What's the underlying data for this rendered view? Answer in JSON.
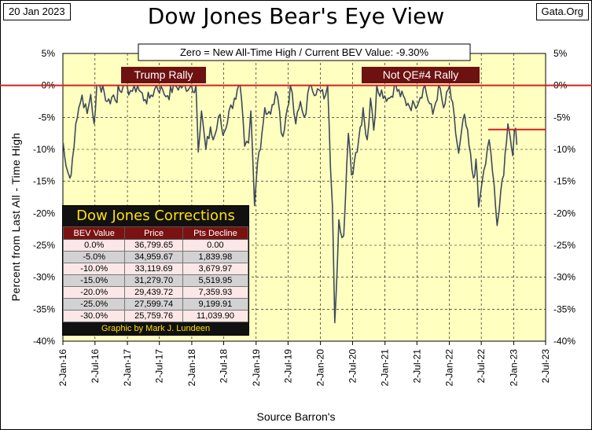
{
  "header": {
    "date": "20 Jan 2023",
    "title": "Dow Jones Bear's Eye View",
    "site": "Gata.Org"
  },
  "chart_data": {
    "type": "line",
    "title": "Dow Jones Bear's Eye View",
    "subtitle": "Zero = New All-Time High / Current BEV Value:  -9.30%",
    "ylabel": "Percent from Last All - Time High",
    "xlabel": "Source Barron's",
    "ylim": [
      -40,
      5
    ],
    "yticks": [
      "5%",
      "0%",
      "-5%",
      "-10%",
      "-15%",
      "-20%",
      "-25%",
      "-30%",
      "-35%",
      "-40%"
    ],
    "xticks": [
      "2-Jan-16",
      "2-Jul-16",
      "2-Jan-17",
      "2-Jul-17",
      "2-Jan-18",
      "2-Jul-18",
      "2-Jan-19",
      "2-Jul-19",
      "2-Jan-20",
      "2-Jul-20",
      "2-Jan-21",
      "2-Jul-21",
      "2-Jan-22",
      "2-Jul-22",
      "2-Jan-23",
      "2-Jul-23"
    ],
    "grid": true,
    "annotations": [
      "Trump Rally",
      "Not QE#4 Rally"
    ],
    "reference_lines": [
      {
        "y": 0,
        "color": "#d42020"
      },
      {
        "y": -6.9,
        "from": "2022-08-10",
        "to": "2023-07-02",
        "color": "#d42020"
      }
    ],
    "series": [
      {
        "name": "BEV",
        "color": "#3d4a5c",
        "points": [
          [
            "2016-01-04",
            -9.0
          ],
          [
            "2016-01-20",
            -12.6
          ],
          [
            "2016-02-11",
            -14.5
          ],
          [
            "2016-02-25",
            -11.5
          ],
          [
            "2016-03-15",
            -6.0
          ],
          [
            "2016-04-01",
            -3.5
          ],
          [
            "2016-04-20",
            -1.5
          ],
          [
            "2016-05-19",
            -4.4
          ],
          [
            "2016-06-08",
            -1.4
          ],
          [
            "2016-06-27",
            -6.0
          ],
          [
            "2016-07-12",
            0.0
          ],
          [
            "2016-08-15",
            0.0
          ],
          [
            "2016-09-09",
            -2.5
          ],
          [
            "2016-10-15",
            -1.5
          ],
          [
            "2016-11-04",
            -2.7
          ],
          [
            "2016-11-10",
            0.0
          ],
          [
            "2016-12-20",
            0.0
          ],
          [
            "2017-01-20",
            -0.8
          ],
          [
            "2017-03-01",
            0.0
          ],
          [
            "2017-04-13",
            -2.2
          ],
          [
            "2017-05-17",
            -1.5
          ],
          [
            "2017-06-15",
            0.0
          ],
          [
            "2017-07-20",
            -0.6
          ],
          [
            "2017-08-18",
            -1.6
          ],
          [
            "2017-09-20",
            0.0
          ],
          [
            "2017-12-31",
            0.0
          ],
          [
            "2018-01-26",
            0.0
          ],
          [
            "2018-02-08",
            -10.4
          ],
          [
            "2018-02-26",
            -4.0
          ],
          [
            "2018-03-23",
            -10.0
          ],
          [
            "2018-04-18",
            -6.5
          ],
          [
            "2018-05-03",
            -8.5
          ],
          [
            "2018-06-12",
            -4.5
          ],
          [
            "2018-06-28",
            -7.8
          ],
          [
            "2018-08-01",
            -4.0
          ],
          [
            "2018-09-01",
            -2.0
          ],
          [
            "2018-10-03",
            0.0
          ],
          [
            "2018-10-29",
            -9.5
          ],
          [
            "2018-11-20",
            -9.0
          ],
          [
            "2018-12-03",
            -4.0
          ],
          [
            "2018-12-24",
            -18.8
          ],
          [
            "2019-01-10",
            -12.0
          ],
          [
            "2019-02-20",
            -3.5
          ],
          [
            "2019-03-25",
            -4.5
          ],
          [
            "2019-04-23",
            -1.0
          ],
          [
            "2019-05-15",
            -4.0
          ],
          [
            "2019-06-03",
            -8.0
          ],
          [
            "2019-07-15",
            0.0
          ],
          [
            "2019-08-15",
            -6.0
          ],
          [
            "2019-09-10",
            -2.5
          ],
          [
            "2019-10-02",
            -5.0
          ],
          [
            "2019-11-01",
            0.0
          ],
          [
            "2020-01-31",
            -1.5
          ],
          [
            "2020-02-12",
            0.0
          ],
          [
            "2020-02-28",
            -13.0
          ],
          [
            "2020-03-10",
            -19.0
          ],
          [
            "2020-03-23",
            -37.1
          ],
          [
            "2020-04-15",
            -21.0
          ],
          [
            "2020-05-13",
            -23.5
          ],
          [
            "2020-06-08",
            -7.5
          ],
          [
            "2020-06-26",
            -14.0
          ],
          [
            "2020-07-20",
            -10.5
          ],
          [
            "2020-08-31",
            -3.5
          ],
          [
            "2020-09-23",
            -8.5
          ],
          [
            "2020-10-12",
            -2.0
          ],
          [
            "2020-10-30",
            -7.0
          ],
          [
            "2020-11-16",
            0.0
          ],
          [
            "2021-01-29",
            -2.0
          ],
          [
            "2021-02-24",
            0.0
          ],
          [
            "2021-05-12",
            -2.8
          ],
          [
            "2021-06-18",
            -3.0
          ],
          [
            "2021-08-16",
            0.0
          ],
          [
            "2021-09-30",
            -4.5
          ],
          [
            "2021-11-02",
            0.0
          ],
          [
            "2021-11-30",
            -3.5
          ],
          [
            "2022-01-04",
            0.0
          ],
          [
            "2022-02-24",
            -10.6
          ],
          [
            "2022-03-29",
            -4.5
          ],
          [
            "2022-05-19",
            -14.5
          ],
          [
            "2022-06-02",
            -11.5
          ],
          [
            "2022-06-17",
            -19.0
          ],
          [
            "2022-07-07",
            -15.0
          ],
          [
            "2022-08-16",
            -8.5
          ],
          [
            "2022-09-13",
            -15.5
          ],
          [
            "2022-09-30",
            -21.9
          ],
          [
            "2022-10-12",
            -19.5
          ],
          [
            "2022-11-15",
            -10.5
          ],
          [
            "2022-11-30",
            -6.0
          ],
          [
            "2022-12-13",
            -8.0
          ],
          [
            "2022-12-28",
            -11.0
          ],
          [
            "2023-01-06",
            -7.0
          ],
          [
            "2023-01-13",
            -6.7
          ],
          [
            "2023-01-20",
            -9.3
          ]
        ]
      }
    ]
  },
  "corrections_table": {
    "title": "Dow Jones Corrections",
    "columns": [
      "BEV Value",
      "Price",
      "Pts Decline"
    ],
    "rows": [
      [
        "0.0%",
        "36,799.65",
        "0.00"
      ],
      [
        "-5.0%",
        "34,959.67",
        "1,839.98"
      ],
      [
        "-10.0%",
        "33,119.69",
        "3,679.97"
      ],
      [
        "-15.0%",
        "31,279.70",
        "5,519.95"
      ],
      [
        "-20.0%",
        "29,439.72",
        "7,359.93"
      ],
      [
        "-25.0%",
        "27,599.74",
        "9,199.91"
      ],
      [
        "-30.0%",
        "25,759.76",
        "11,039.90"
      ]
    ],
    "footer": "Graphic by Mark J. Lundeen"
  },
  "colors": {
    "plot_background": "#ffffc0",
    "series": "#3d4a5c",
    "zero_line": "#d42020",
    "banner": "#6e1111",
    "table_header": "#7b1212",
    "table_title": "#ffe000"
  }
}
